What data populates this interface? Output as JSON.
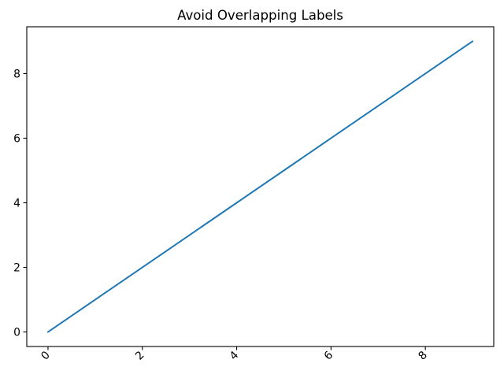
{
  "chart_data": {
    "type": "line",
    "title": "Avoid Overlapping Labels",
    "x": [
      0,
      1,
      2,
      3,
      4,
      5,
      6,
      7,
      8,
      9
    ],
    "y": [
      0,
      1,
      2,
      3,
      4,
      5,
      6,
      7,
      8,
      9
    ],
    "xticks": [
      0,
      2,
      4,
      6,
      8
    ],
    "yticks": [
      0,
      2,
      4,
      6,
      8
    ],
    "xtick_rotation": 45,
    "xlim": [
      -0.45,
      9.45
    ],
    "ylim": [
      -0.45,
      9.45
    ],
    "xlabel": "",
    "ylabel": "",
    "grid": false,
    "legend": false,
    "line_color": "#1f77b4",
    "axis_color": "#000000",
    "background_color": "#ffffff"
  }
}
